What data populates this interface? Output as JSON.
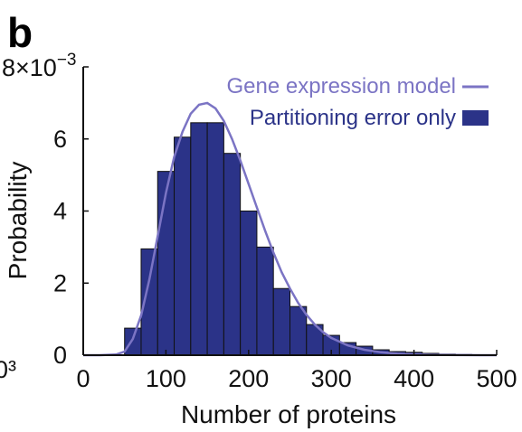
{
  "panel_label": "b",
  "cut_off_label": "0³",
  "colors": {
    "bar_fill": "#2b3388",
    "bar_edge": "#111111",
    "curve": "#7b74c4",
    "axis": "#111111",
    "legend_line_text": "#7b74c4",
    "legend_bar_text": "#2b3388"
  },
  "chart_data": {
    "type": "bar",
    "xlabel": "Number of proteins",
    "ylabel": "Probability",
    "y_multiplier_label": "8×10",
    "y_multiplier_exponent": "−3",
    "xlim": [
      0,
      500
    ],
    "ylim": [
      0,
      8
    ],
    "x_ticks": [
      0,
      100,
      200,
      300,
      400,
      500
    ],
    "y_ticks": [
      0,
      2,
      4,
      6
    ],
    "grid": false,
    "legend_position": "top-right",
    "series": [
      {
        "name": "Partitioning error only",
        "kind": "bar",
        "bin_width": 20,
        "bin_centers": [
          40,
          60,
          80,
          100,
          120,
          140,
          160,
          180,
          200,
          220,
          240,
          260,
          280,
          300,
          320,
          340,
          360,
          380,
          400,
          420,
          440,
          460,
          480,
          500
        ],
        "values": [
          0.0,
          0.75,
          2.95,
          5.1,
          6.05,
          6.45,
          6.45,
          5.6,
          4.0,
          3.0,
          1.85,
          1.35,
          0.85,
          0.55,
          0.35,
          0.25,
          0.15,
          0.1,
          0.08,
          0.05,
          0.03,
          0.02,
          0.01,
          0.0
        ]
      },
      {
        "name": "Gene expression model",
        "kind": "line",
        "x": [
          0,
          20,
          40,
          50,
          60,
          70,
          80,
          90,
          100,
          110,
          120,
          130,
          140,
          150,
          160,
          170,
          180,
          190,
          200,
          210,
          220,
          230,
          240,
          250,
          260,
          270,
          280,
          290,
          300,
          320,
          340,
          360,
          380,
          400,
          420,
          440,
          460,
          480,
          500
        ],
        "y": [
          0.0,
          0.0,
          0.02,
          0.1,
          0.45,
          1.1,
          2.1,
          3.3,
          4.5,
          5.5,
          6.2,
          6.7,
          6.95,
          7.0,
          6.85,
          6.5,
          6.0,
          5.4,
          4.75,
          4.1,
          3.45,
          2.85,
          2.3,
          1.85,
          1.45,
          1.12,
          0.85,
          0.64,
          0.48,
          0.27,
          0.15,
          0.08,
          0.04,
          0.02,
          0.01,
          0.005,
          0.002,
          0.001,
          0.0
        ]
      }
    ]
  }
}
